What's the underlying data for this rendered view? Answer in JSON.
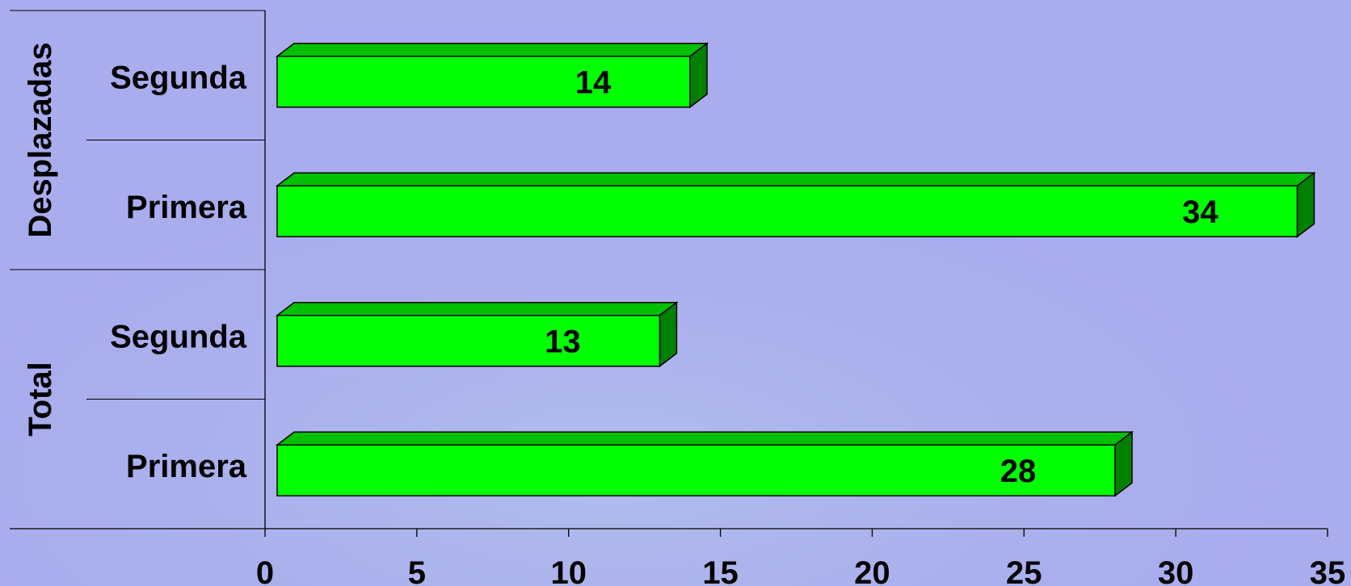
{
  "chart_data": {
    "type": "bar",
    "orientation": "horizontal",
    "groups": [
      {
        "label": "Desplazadas",
        "categories": [
          "Segunda",
          "Primera"
        ],
        "values": [
          14,
          34
        ]
      },
      {
        "label": "Total",
        "categories": [
          "Segunda",
          "Primera"
        ],
        "values": [
          13,
          28
        ]
      }
    ],
    "data_labels": [
      "14",
      "34",
      "13",
      "28"
    ],
    "xlim": [
      0,
      35
    ],
    "x_ticks": [
      "0",
      "5",
      "10",
      "15",
      "20",
      "25",
      "30",
      "35"
    ],
    "title": "",
    "xlabel": "",
    "ylabel": "",
    "grid": false,
    "legend": "none",
    "colors": {
      "bar_front": "#00ff00",
      "bar_top": "#00c000",
      "bar_side": "#008000",
      "background": "#a9aced"
    }
  }
}
